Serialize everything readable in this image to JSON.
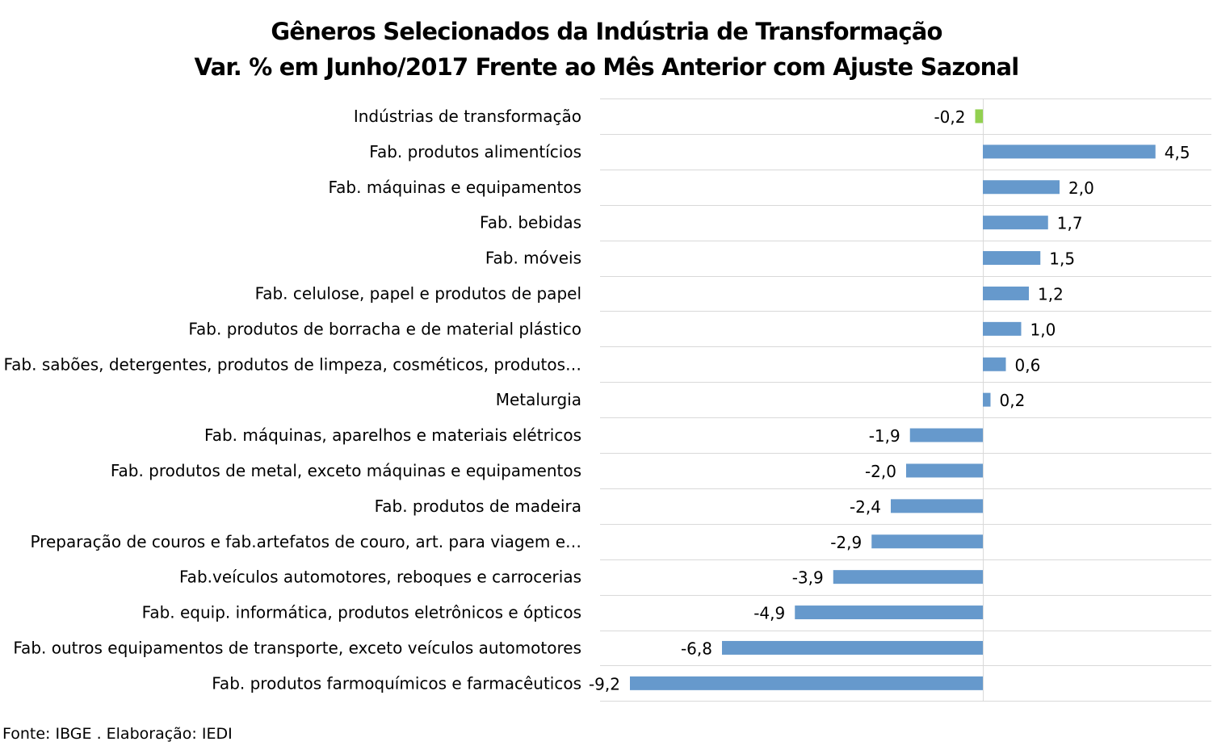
{
  "chart_data": {
    "type": "bar",
    "orientation": "horizontal",
    "title": "Gêneros Selecionados da Indústria de Transformação",
    "subtitle": "Var. % em Junho/2017 Frente ao Mês Anterior com Ajuste Sazonal",
    "source": "Fonte: IBGE . Elaboração: IEDI",
    "xlim": [
      -9.8,
      6.0
    ],
    "grid": "horizontal category separators",
    "legend": "none",
    "colors": {
      "default": "#6699CC",
      "highlight": "#92D050"
    },
    "categories": [
      "Indústrias de transformação",
      "Fab. produtos alimentícios",
      "Fab. máquinas e equipamentos",
      "Fab. bebidas",
      "Fab. móveis",
      "Fab. celulose, papel e produtos de papel",
      "Fab. produtos de borracha e de material plástico",
      "Fab. sabões, detergentes, produtos de limpeza, cosméticos, produtos…",
      "Metalurgia",
      "Fab. máquinas, aparelhos e materiais elétricos",
      "Fab. produtos de metal, exceto máquinas e equipamentos",
      "Fab. produtos de madeira",
      "Preparação de couros e fab.artefatos de couro, art. para viagem e…",
      "Fab.veículos automotores, reboques e carrocerias",
      "Fab. equip. informática, produtos eletrônicos e ópticos",
      "Fab. outros equipamentos de transporte, exceto veículos automotores",
      "Fab. produtos farmoquímicos e farmacêuticos"
    ],
    "values": [
      -0.2,
      4.5,
      2.0,
      1.7,
      1.5,
      1.2,
      1.0,
      0.6,
      0.2,
      -1.9,
      -2.0,
      -2.4,
      -2.9,
      -3.9,
      -4.9,
      -6.8,
      -9.2
    ],
    "value_labels": [
      "-0,2",
      "4,5",
      "2,0",
      "1,7",
      "1,5",
      "1,2",
      "1,0",
      "0,6",
      "0,2",
      "-1,9",
      "-2,0",
      "-2,4",
      "-2,9",
      "-3,9",
      "-4,9",
      "-6,8",
      "-9,2"
    ],
    "highlight_index": 0
  }
}
